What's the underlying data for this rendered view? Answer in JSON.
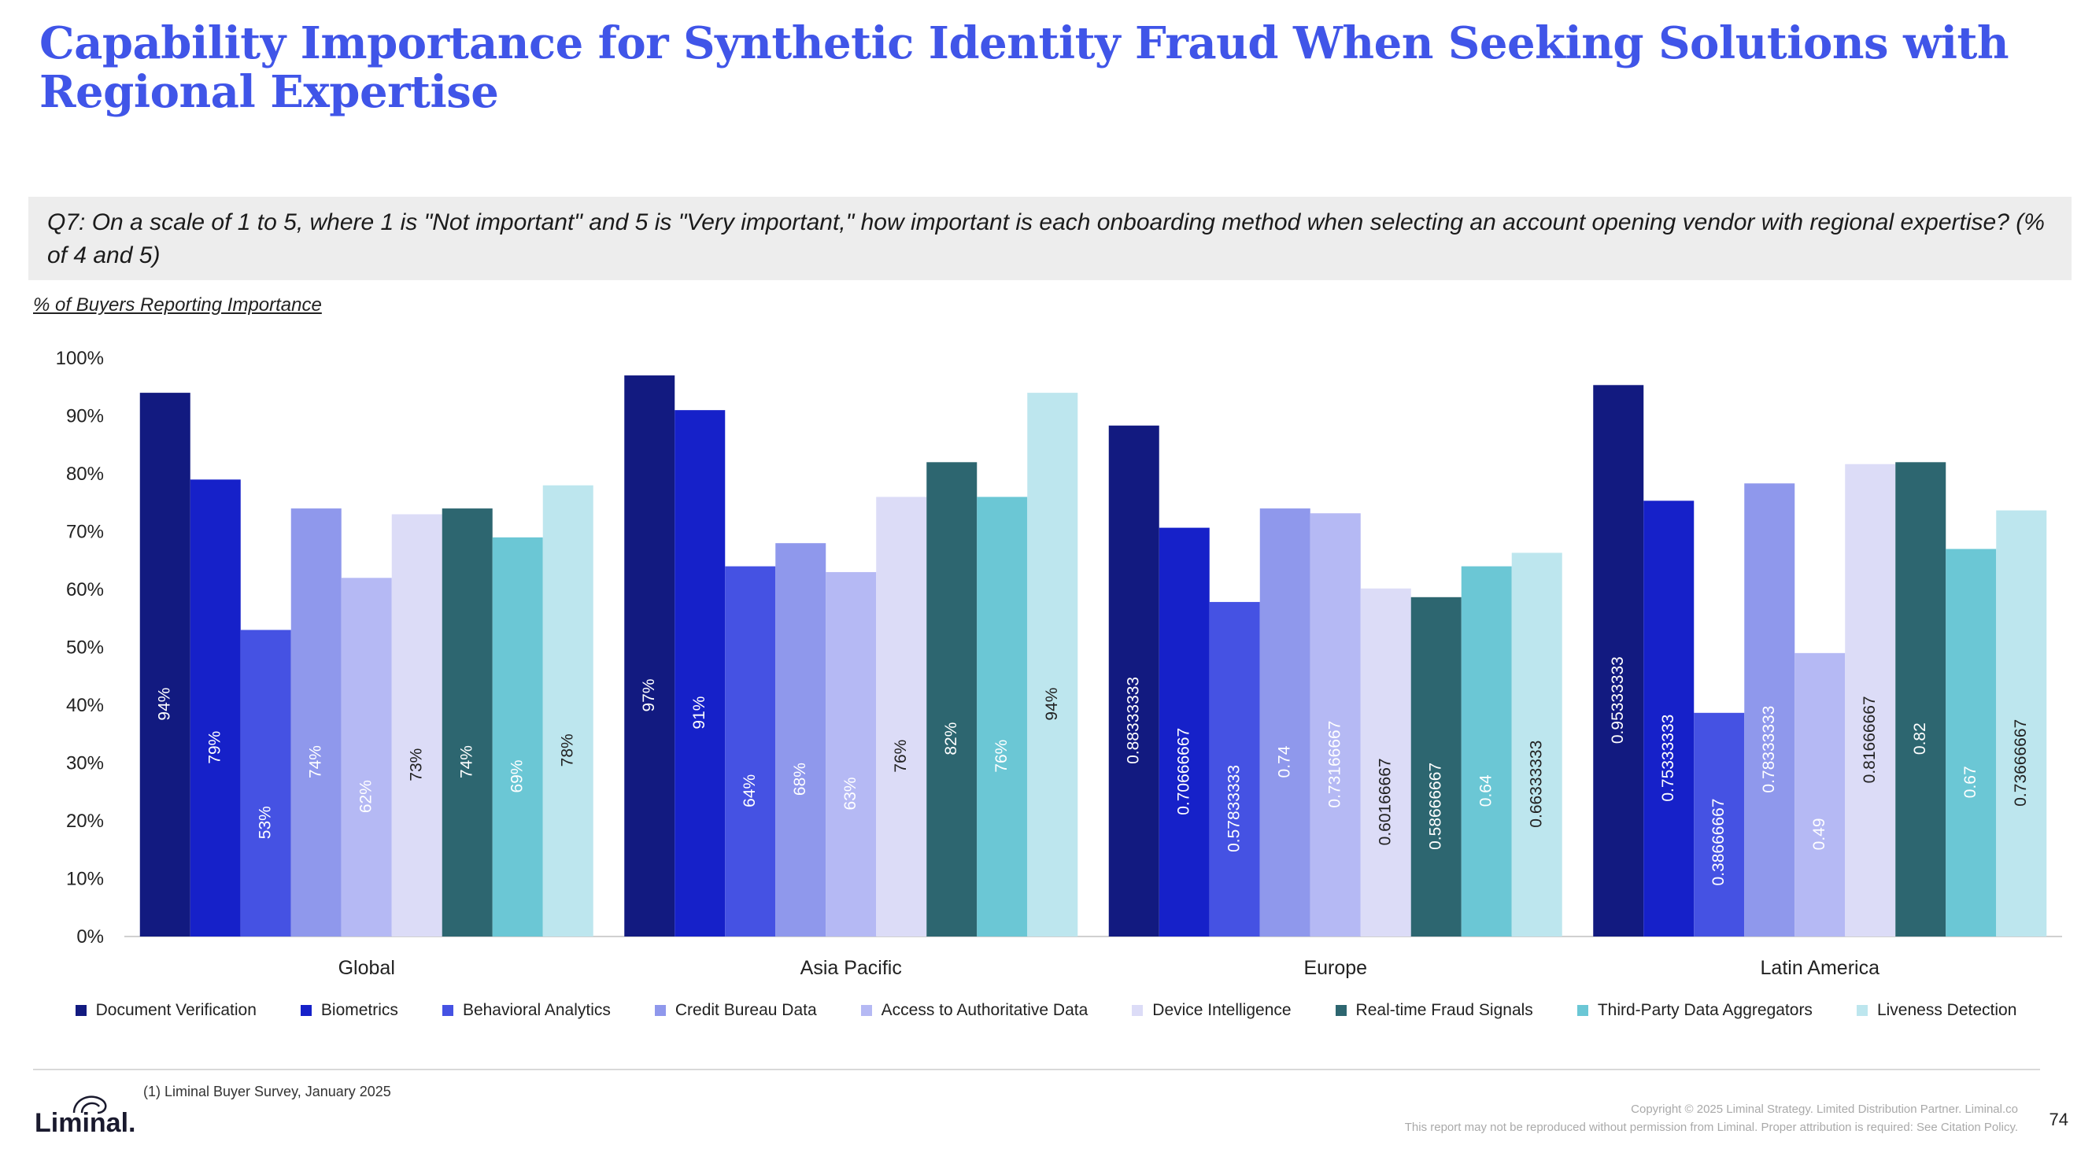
{
  "page": {
    "title": "Capability Importance for Synthetic Identity Fraud When Seeking Solutions with Regional Expertise",
    "question": "Q7: On a scale of 1 to 5, where 1 is \"Not important\" and 5 is \"Very important,\" how important is each onboarding method when selecting an account opening vendor with regional expertise? (% of 4 and 5)",
    "axis_caption": "% of Buyers Reporting Importance",
    "footnote": "(1) Liminal Buyer Survey, January 2025",
    "logo_text": "Liminal.",
    "copyright_line1": "Copyright © 2025 Liminal Strategy. Limited Distribution Partner. Liminal.co",
    "copyright_line2": "This report may not be reproduced without permission from Liminal. Proper attribution is required: See Citation Policy.",
    "page_number": "74"
  },
  "chart_data": {
    "type": "bar",
    "categories": [
      "Global",
      "Asia Pacific",
      "Europe",
      "Latin America"
    ],
    "ylim": [
      0,
      1
    ],
    "yticks": [
      "0%",
      "10%",
      "20%",
      "30%",
      "40%",
      "50%",
      "60%",
      "70%",
      "80%",
      "90%",
      "100%"
    ],
    "grid": false,
    "legend_position": "bottom",
    "series": [
      {
        "name": "Document Verification",
        "color": "#121a80",
        "label_color": "#ffffff",
        "values": [
          0.94,
          0.97,
          0.8833333,
          0.9533333
        ],
        "labels": [
          "94%",
          "97%",
          "0.88333333",
          "0.95333333"
        ]
      },
      {
        "name": "Biometrics",
        "color": "#1621c9",
        "label_color": "#ffffff",
        "values": [
          0.79,
          0.91,
          0.7066667,
          0.7533333
        ],
        "labels": [
          "79%",
          "91%",
          "0.70666667",
          "0.75333333"
        ]
      },
      {
        "name": "Behavioral Analytics",
        "color": "#4552e3",
        "label_color": "#ffffff",
        "values": [
          0.53,
          0.64,
          0.5783333,
          0.3866667
        ],
        "labels": [
          "53%",
          "64%",
          "0.57833333",
          "0.38666667"
        ]
      },
      {
        "name": "Credit Bureau Data",
        "color": "#8f98ec",
        "label_color": "#ffffff",
        "values": [
          0.74,
          0.68,
          0.74,
          0.7833333
        ],
        "labels": [
          "74%",
          "68%",
          "0.74",
          "0.78333333"
        ]
      },
      {
        "name": "Access to Authoritative Data",
        "color": "#b5b9f4",
        "label_color": "#ffffff",
        "values": [
          0.62,
          0.63,
          0.7316667,
          0.49
        ],
        "labels": [
          "62%",
          "63%",
          "0.73166667",
          "0.49"
        ]
      },
      {
        "name": "Device Intelligence",
        "color": "#dcdcf7",
        "label_color": "#222222",
        "values": [
          0.73,
          0.76,
          0.6016667,
          0.8166667
        ],
        "labels": [
          "73%",
          "76%",
          "0.60166667",
          "0.81666667"
        ]
      },
      {
        "name": "Real-time Fraud Signals",
        "color": "#2d6670",
        "label_color": "#ffffff",
        "values": [
          0.74,
          0.82,
          0.5866667,
          0.82
        ],
        "labels": [
          "74%",
          "82%",
          "0.58666667",
          "0.82"
        ]
      },
      {
        "name": "Third-Party Data Aggregators",
        "color": "#6bc7d5",
        "label_color": "#ffffff",
        "values": [
          0.69,
          0.76,
          0.64,
          0.67
        ],
        "labels": [
          "69%",
          "76%",
          "0.64",
          "0.67"
        ]
      },
      {
        "name": "Liveness Detection",
        "color": "#bde6ee",
        "label_color": "#222222",
        "values": [
          0.78,
          0.94,
          0.6633333,
          0.7366667
        ],
        "labels": [
          "78%",
          "94%",
          "0.66333333",
          "0.73666667"
        ]
      }
    ]
  }
}
